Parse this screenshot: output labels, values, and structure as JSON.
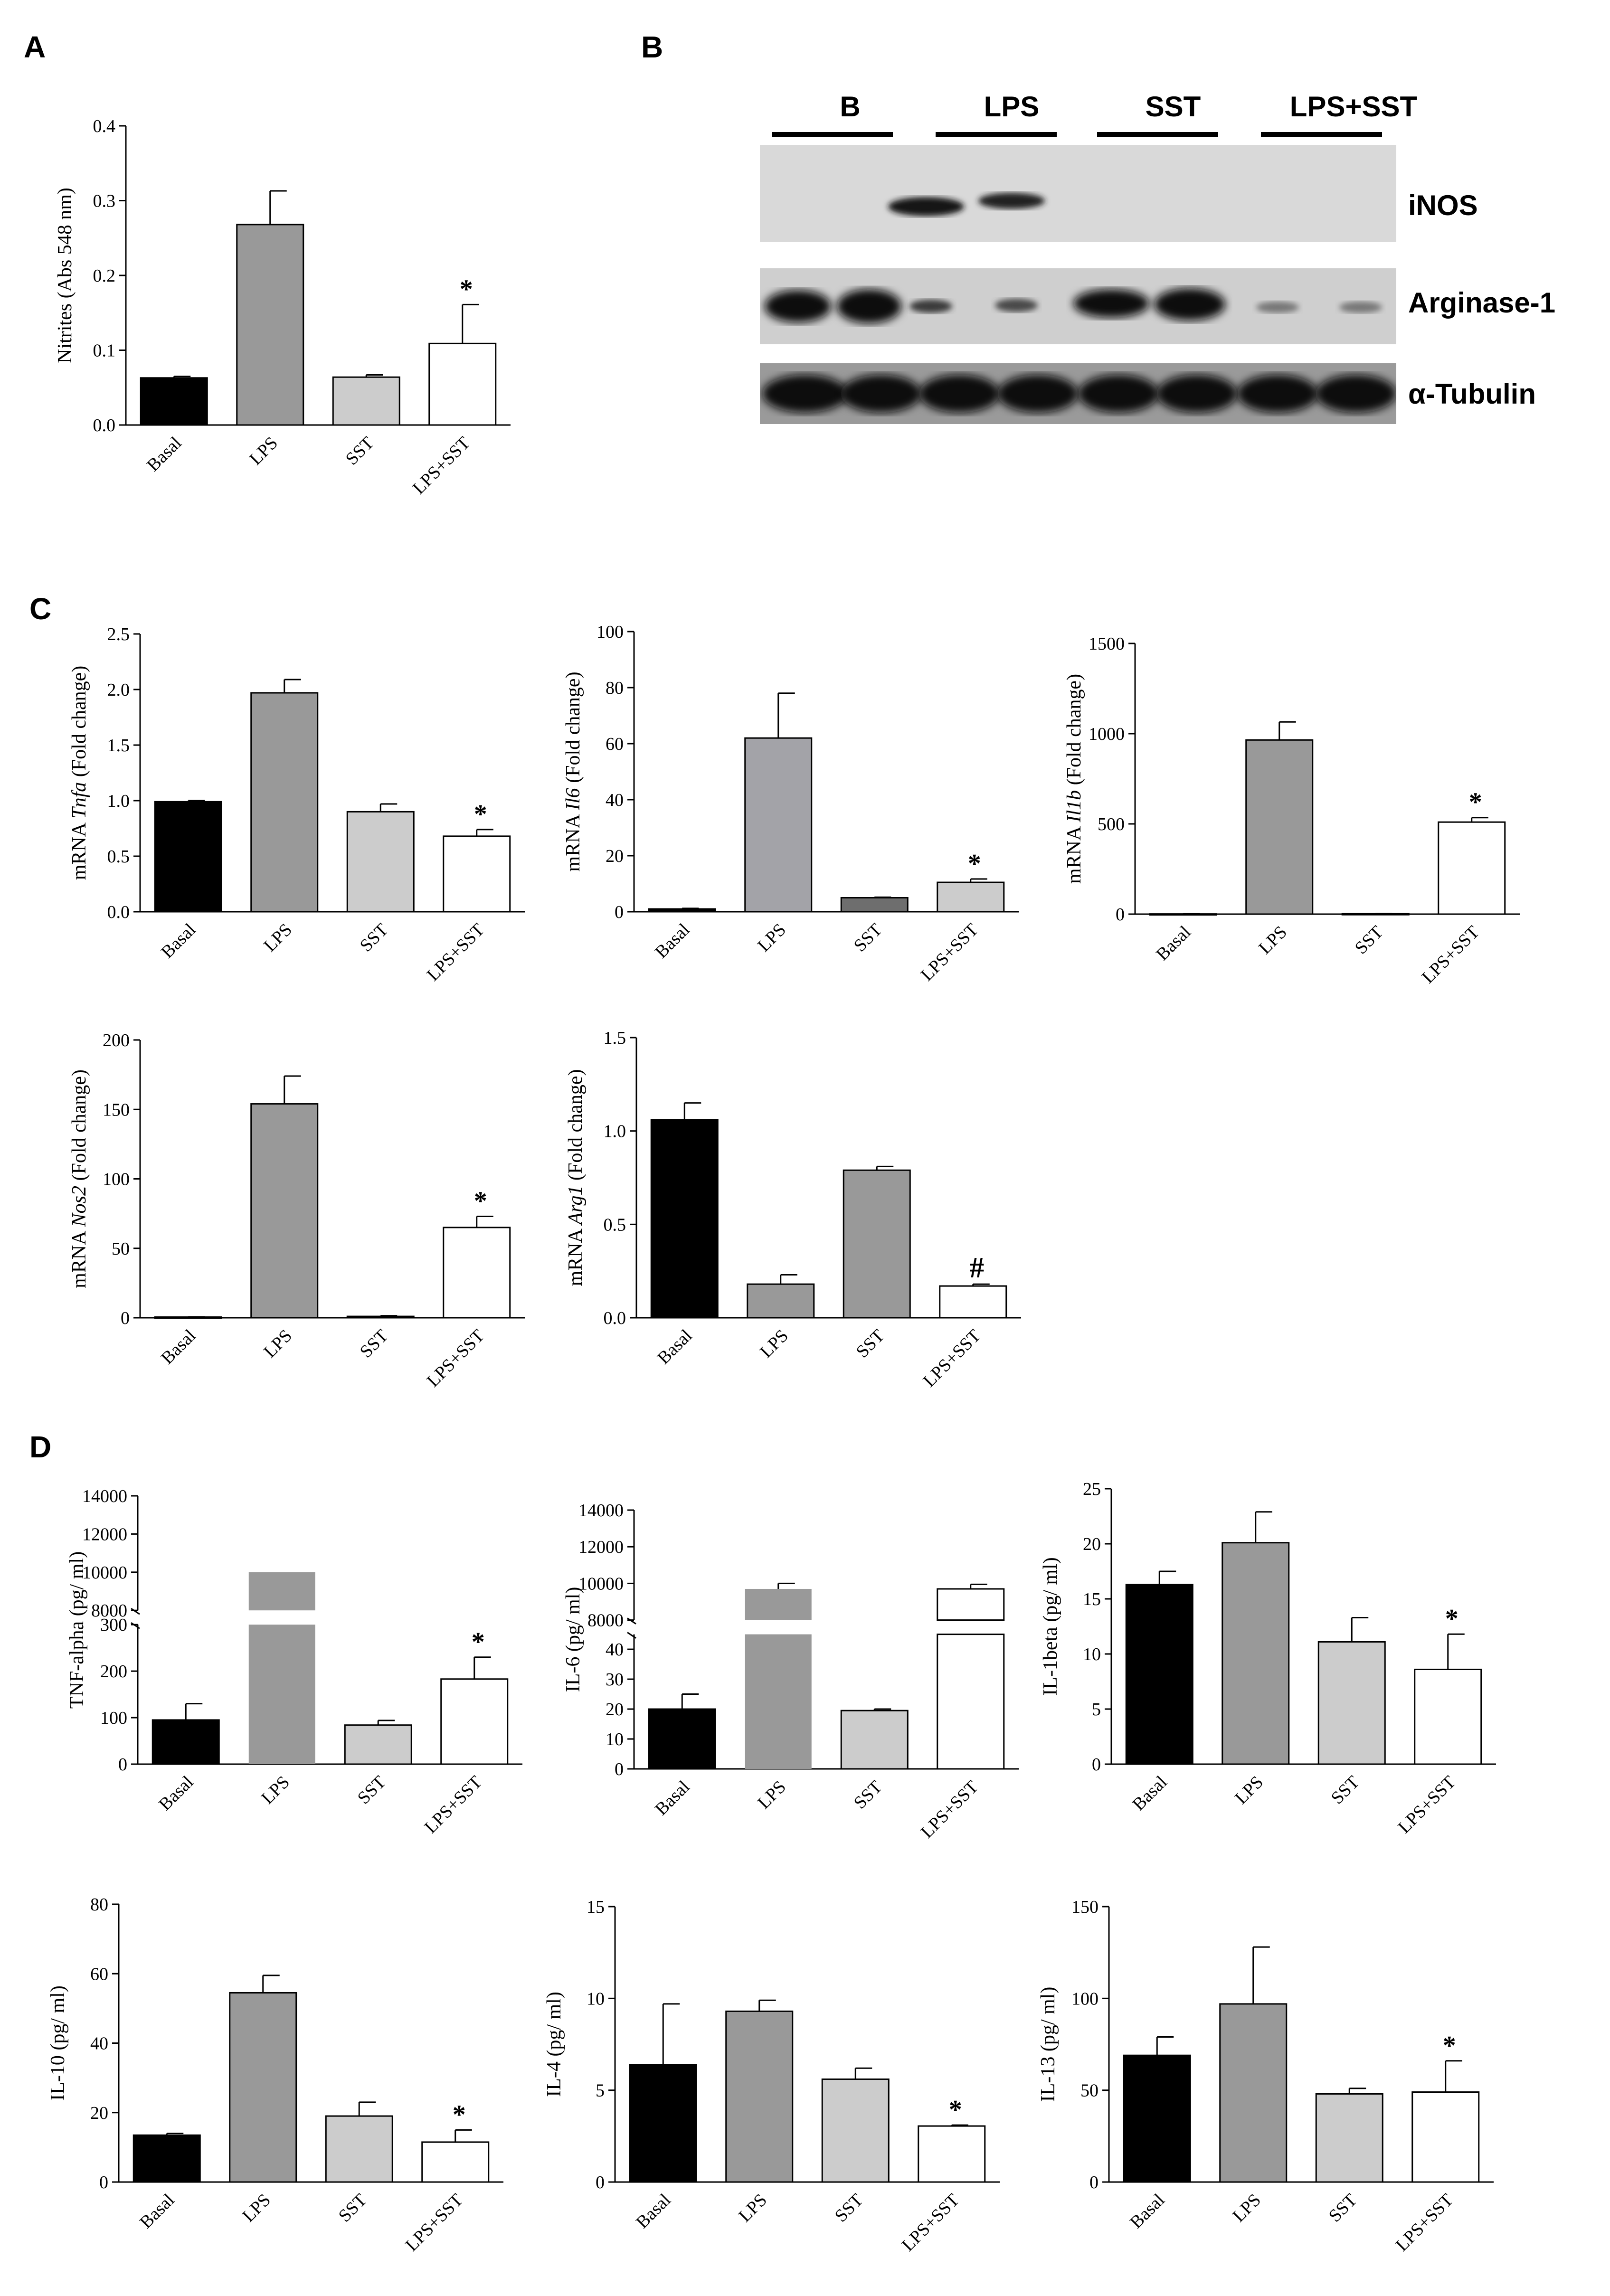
{
  "panels": {
    "A": "A",
    "B": "B",
    "C": "C",
    "D": "D"
  },
  "colors": {
    "Basal": "#000000",
    "LPS": "#999999",
    "SST": "#cccccc",
    "LPS+SST": "#ffffff",
    "LPS_alt": "#a3a3a8",
    "SST_dark": "#6e6e6e"
  },
  "blot": {
    "lanes": [
      "B",
      "LPS",
      "SST",
      "LPS+SST"
    ],
    "rows": [
      "iNOS",
      "Arginase-1",
      "α-Tubulin"
    ]
  },
  "chart_data": [
    {
      "id": "A_nitrites",
      "type": "bar",
      "categories": [
        "Basal",
        "LPS",
        "SST",
        "LPS+SST"
      ],
      "values": [
        0.063,
        0.268,
        0.064,
        0.109
      ],
      "errors": [
        0.002,
        0.045,
        0.003,
        0.052
      ],
      "ylabel": "Nitrites (Abs 548 nm)",
      "ylim": [
        0,
        0.4
      ],
      "yticks": [
        "0.0",
        "0.1",
        "0.2",
        "0.3",
        "0.4"
      ],
      "annotations": {
        "LPS+SST": "*"
      }
    },
    {
      "id": "C_tnfa",
      "type": "bar",
      "categories": [
        "Basal",
        "LPS",
        "SST",
        "LPS+SST"
      ],
      "values": [
        0.99,
        1.97,
        0.9,
        0.68
      ],
      "errors": [
        0.01,
        0.12,
        0.07,
        0.06
      ],
      "ylabel_parts": [
        "mRNA ",
        "Tnfa",
        " (Fold change)"
      ],
      "ylim": [
        0,
        2.5
      ],
      "yticks": [
        "0.0",
        "0.5",
        "1.0",
        "1.5",
        "2.0",
        "2.5"
      ],
      "annotations": {
        "LPS+SST": "*"
      }
    },
    {
      "id": "C_il6",
      "type": "bar",
      "categories": [
        "Basal",
        "LPS",
        "SST",
        "LPS+SST"
      ],
      "values": [
        1,
        62,
        5,
        10.5
      ],
      "errors": [
        0.2,
        16,
        0.2,
        1.2
      ],
      "ylabel_parts": [
        "mRNA ",
        "Il6",
        " (Fold change)"
      ],
      "ylim": [
        0,
        100
      ],
      "yticks": [
        "0",
        "20",
        "40",
        "60",
        "80",
        "100"
      ],
      "annotations": {
        "LPS+SST": "*"
      }
    },
    {
      "id": "C_il1b",
      "type": "bar",
      "categories": [
        "Basal",
        "LPS",
        "SST",
        "LPS+SST"
      ],
      "values": [
        1,
        965,
        2,
        510
      ],
      "errors": [
        0.5,
        100,
        1,
        25
      ],
      "ylabel_parts": [
        "mRNA ",
        "Il1b",
        " (Fold change)"
      ],
      "ylim": [
        0,
        1500
      ],
      "yticks": [
        "0",
        "500",
        "1000",
        "1500"
      ],
      "annotations": {
        "LPS+SST": "*"
      }
    },
    {
      "id": "C_nos2",
      "type": "bar",
      "categories": [
        "Basal",
        "LPS",
        "SST",
        "LPS+SST"
      ],
      "values": [
        0.5,
        154,
        1,
        65
      ],
      "errors": [
        0.2,
        20,
        0.5,
        8
      ],
      "ylabel_parts": [
        "mRNA ",
        "Nos2",
        " (Fold change)"
      ],
      "ylim": [
        0,
        200
      ],
      "yticks": [
        "0",
        "50",
        "100",
        "150",
        "200"
      ],
      "annotations": {
        "LPS+SST": "*"
      }
    },
    {
      "id": "C_arg1",
      "type": "bar",
      "categories": [
        "Basal",
        "LPS",
        "SST",
        "LPS+SST"
      ],
      "values": [
        1.06,
        0.18,
        0.79,
        0.17
      ],
      "errors": [
        0.09,
        0.05,
        0.02,
        0.01
      ],
      "ylabel_parts": [
        "mRNA ",
        "Arg1",
        " (Fold change)"
      ],
      "ylim": [
        0,
        1.5
      ],
      "yticks": [
        "0.0",
        "0.5",
        "1.0",
        "1.5"
      ],
      "annotations": {
        "LPS+SST": "#"
      }
    },
    {
      "id": "D_tnf",
      "type": "bar",
      "categories": [
        "Basal",
        "LPS",
        "SST",
        "LPS+SST"
      ],
      "values": [
        95,
        10000,
        84,
        183
      ],
      "errors": [
        35,
        0,
        10,
        47
      ],
      "ylabel": "TNF-alpha (pg/ ml)",
      "broken_axis": true,
      "ylim_low": [
        0,
        300
      ],
      "ylim_high": [
        8000,
        14000
      ],
      "yticks_low": [
        "0",
        "100",
        "200",
        "300"
      ],
      "yticks_high": [
        "8000",
        "10000",
        "12000",
        "14000"
      ],
      "annotations": {
        "LPS+SST": "*"
      }
    },
    {
      "id": "D_il6",
      "type": "bar",
      "categories": [
        "Basal",
        "LPS",
        "SST",
        "LPS+SST"
      ],
      "values": [
        20,
        9700,
        19.5,
        9700
      ],
      "errors": [
        5,
        300,
        0.5,
        250
      ],
      "ylabel": "IL-6 (pg/ ml)",
      "broken_axis": true,
      "ylim_low": [
        0,
        45
      ],
      "ylim_high": [
        8000,
        14000
      ],
      "yticks_low": [
        "0",
        "10",
        "20",
        "30",
        "40"
      ],
      "yticks_high": [
        "8000",
        "10000",
        "12000",
        "14000"
      ],
      "annotations": {}
    },
    {
      "id": "D_il1beta",
      "type": "bar",
      "categories": [
        "Basal",
        "LPS",
        "SST",
        "LPS+SST"
      ],
      "values": [
        16.3,
        20.1,
        11.1,
        8.6
      ],
      "errors": [
        1.2,
        2.8,
        2.2,
        3.2
      ],
      "ylabel": "IL-1beta (pg/ ml)",
      "ylim": [
        0,
        25
      ],
      "yticks": [
        "0",
        "5",
        "10",
        "15",
        "20",
        "25"
      ],
      "annotations": {
        "LPS+SST": "*"
      }
    },
    {
      "id": "D_il10",
      "type": "bar",
      "categories": [
        "Basal",
        "LPS",
        "SST",
        "LPS+SST"
      ],
      "values": [
        13.5,
        54.5,
        19,
        11.5
      ],
      "errors": [
        0.5,
        5,
        4,
        3.5
      ],
      "ylabel": "IL-10 (pg/ ml)",
      "ylim": [
        0,
        80
      ],
      "yticks": [
        "0",
        "20",
        "40",
        "60",
        "80"
      ],
      "annotations": {
        "LPS+SST": "*"
      }
    },
    {
      "id": "D_il4",
      "type": "bar",
      "categories": [
        "Basal",
        "LPS",
        "SST",
        "LPS+SST"
      ],
      "values": [
        6.4,
        9.3,
        5.6,
        3.05
      ],
      "errors": [
        3.3,
        0.6,
        0.6,
        0.05
      ],
      "ylabel": "IL-4 (pg/ ml)",
      "ylim": [
        0,
        15
      ],
      "yticks": [
        "0",
        "5",
        "10",
        "15"
      ],
      "annotations": {
        "LPS+SST": "*"
      }
    },
    {
      "id": "D_il13",
      "type": "bar",
      "categories": [
        "Basal",
        "LPS",
        "SST",
        "LPS+SST"
      ],
      "values": [
        69,
        97,
        48,
        49
      ],
      "errors": [
        10,
        31,
        3,
        17
      ],
      "ylabel": "IL-13 (pg/ ml)",
      "ylim": [
        0,
        150
      ],
      "yticks": [
        "0",
        "50",
        "100",
        "150"
      ],
      "annotations": {
        "LPS+SST": "*"
      }
    }
  ]
}
